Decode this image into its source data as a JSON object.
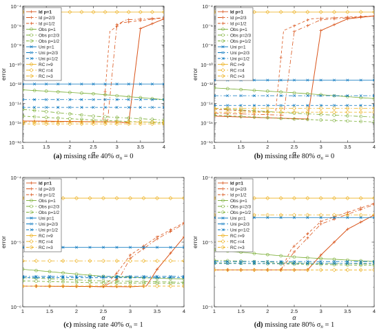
{
  "chart_data": [
    {
      "type": "line",
      "caption_tag": "(a)",
      "caption_text": "missing rate 40% σ",
      "caption_sub": "n",
      "caption_tail": " = 0",
      "xlabel": "α",
      "ylabel": "error",
      "xlim": [
        1,
        4
      ],
      "ylim": [
        1e-18,
        0.0001
      ],
      "yscale": "log",
      "x_ticks": [
        1,
        1.5,
        2,
        2.5,
        3,
        3.5,
        4
      ],
      "y_ticks": [
        "10⁻¹⁸",
        "10⁻¹⁶",
        "10⁻¹⁴",
        "10⁻¹²",
        "10⁻¹⁰",
        "10⁻⁸",
        "10⁻⁶",
        "10⁻⁴"
      ],
      "legend_position": "top-left",
      "series": [
        {
          "name": "Id p=1",
          "x": [
            1,
            3.0,
            3.25,
            3.5,
            4
          ],
          "y": [
            -15.8,
            -15.9,
            -16.0,
            -6.3,
            -5.3
          ]
        },
        {
          "name": "Id p=2/3",
          "x": [
            1,
            2.8,
            3.0,
            3.2,
            4
          ],
          "y": [
            -15.8,
            -15.9,
            -5.9,
            -5.4,
            -5.2
          ]
        },
        {
          "name": "Id p=1/2",
          "x": [
            1,
            2.7,
            2.85,
            3.1,
            4
          ],
          "y": [
            -15.8,
            -15.9,
            -6.6,
            -5.7,
            -5.2
          ]
        },
        {
          "name": "Obs p=1",
          "x": [
            1,
            2.5,
            4
          ],
          "y": [
            -12.6,
            -13.0,
            -13.6
          ]
        },
        {
          "name": "Obs p=2/3",
          "x": [
            1,
            2.5,
            4
          ],
          "y": [
            -14.6,
            -15.3,
            -15.7
          ]
        },
        {
          "name": "Obs p=1/2",
          "x": [
            1,
            2.5,
            4
          ],
          "y": [
            -15.3,
            -15.7,
            -16.0
          ]
        },
        {
          "name": "Uni p=1",
          "x": [
            1,
            4
          ],
          "y": [
            -12.0,
            -12.0
          ]
        },
        {
          "name": "Uni p=2/3",
          "x": [
            1,
            4
          ],
          "y": [
            -13.6,
            -13.6
          ]
        },
        {
          "name": "Uni p=1/2",
          "x": [
            1,
            4
          ],
          "y": [
            -14.4,
            -14.4
          ]
        },
        {
          "name": "RC r=9",
          "x": [
            1,
            4
          ],
          "y": [
            -4.6,
            -4.6
          ]
        },
        {
          "name": "RC r=4",
          "x": [
            1,
            4
          ],
          "y": [
            -15.9,
            -15.9
          ]
        },
        {
          "name": "RC r=3",
          "x": [
            1,
            4
          ],
          "y": [
            -16.1,
            -16.1
          ]
        }
      ]
    },
    {
      "type": "line",
      "caption_tag": "(b)",
      "caption_text": "missing rate 80% σ",
      "caption_sub": "n",
      "caption_tail": " = 0",
      "xlabel": "α",
      "ylabel": "error",
      "xlim": [
        1,
        4
      ],
      "ylim": [
        1e-18,
        0.0001
      ],
      "yscale": "log",
      "x_ticks": [
        1,
        1.5,
        2,
        2.5,
        3,
        3.5,
        4
      ],
      "y_ticks": [
        "10⁻¹⁸",
        "10⁻¹⁶",
        "10⁻¹⁴",
        "10⁻¹²",
        "10⁻¹⁰",
        "10⁻⁸",
        "10⁻⁶",
        "10⁻⁴"
      ],
      "legend_position": "top-left",
      "series": [
        {
          "name": "Id p=1",
          "x": [
            1,
            2.75,
            3.0,
            3.5,
            4
          ],
          "y": [
            -15.3,
            -15.6,
            -6.5,
            -5.3,
            -5.0
          ]
        },
        {
          "name": "Id p=2/3",
          "x": [
            1,
            2.3,
            2.5,
            3.0,
            4
          ],
          "y": [
            -15.0,
            -15.2,
            -6.6,
            -5.4,
            -5.0
          ]
        },
        {
          "name": "Id p=1/2",
          "x": [
            1,
            2.15,
            2.3,
            2.8,
            4
          ],
          "y": [
            -14.6,
            -14.9,
            -6.5,
            -5.3,
            -5.0
          ]
        },
        {
          "name": "Obs p=1",
          "x": [
            1,
            2.5,
            4
          ],
          "y": [
            -12.4,
            -12.9,
            -13.5
          ]
        },
        {
          "name": "Obs p=2/3",
          "x": [
            1,
            2.5,
            4
          ],
          "y": [
            -14.5,
            -15.0,
            -15.4
          ]
        },
        {
          "name": "Obs p=1/2",
          "x": [
            1,
            2.5,
            4
          ],
          "y": [
            -15.2,
            -15.6,
            -15.9
          ]
        },
        {
          "name": "Uni p=1",
          "x": [
            1,
            4
          ],
          "y": [
            -11.6,
            -11.6
          ]
        },
        {
          "name": "Uni p=2/3",
          "x": [
            1,
            4
          ],
          "y": [
            -13.2,
            -13.2
          ]
        },
        {
          "name": "Uni p=1/2",
          "x": [
            1,
            4
          ],
          "y": [
            -14.2,
            -14.2
          ]
        },
        {
          "name": "RC r=9",
          "x": [
            1,
            4
          ],
          "y": [
            -4.6,
            -4.6
          ]
        },
        {
          "name": "RC r=4",
          "x": [
            1,
            4
          ],
          "y": [
            -14.5,
            -14.5
          ]
        },
        {
          "name": "RC r=3",
          "x": [
            1,
            4
          ],
          "y": [
            -14.9,
            -14.9
          ]
        }
      ]
    },
    {
      "type": "line",
      "caption_tag": "(c)",
      "caption_text": "missing rate 40% σ",
      "caption_sub": "n",
      "caption_tail": " = 1",
      "xlabel": "α",
      "ylabel": "error",
      "xlim": [
        1,
        4
      ],
      "ylim": [
        1e-06,
        0.0001
      ],
      "yscale": "log",
      "x_ticks": [
        1,
        1.5,
        2,
        2.5,
        3,
        3.5,
        4
      ],
      "y_ticks": [
        "10⁻⁶",
        "10⁻⁵",
        "10⁻⁴"
      ],
      "legend_position": "top-left",
      "series": [
        {
          "name": "Id p=1",
          "x": [
            1,
            3.0,
            3.3,
            3.5,
            3.75,
            4
          ],
          "y": [
            -5.68,
            -5.69,
            -5.68,
            -5.42,
            -5.17,
            -4.92
          ]
        },
        {
          "name": "Id p=2/3",
          "x": [
            1,
            2.5,
            2.8,
            3.0,
            3.5,
            4
          ],
          "y": [
            -5.68,
            -5.69,
            -5.55,
            -5.25,
            -4.95,
            -4.72
          ]
        },
        {
          "name": "Id p=1/2",
          "x": [
            1,
            2.5,
            2.75,
            3.0,
            3.5,
            4
          ],
          "y": [
            -5.68,
            -5.69,
            -5.48,
            -5.2,
            -4.92,
            -4.7
          ]
        },
        {
          "name": "Obs p=1",
          "x": [
            1,
            2.5,
            4
          ],
          "y": [
            -5.42,
            -5.53,
            -5.57
          ]
        },
        {
          "name": "Obs p=2/3",
          "x": [
            1,
            2.5,
            4
          ],
          "y": [
            -5.55,
            -5.6,
            -5.62
          ]
        },
        {
          "name": "Obs p=1/2",
          "x": [
            1,
            2.5,
            4
          ],
          "y": [
            -5.6,
            -5.63,
            -5.64
          ]
        },
        {
          "name": "Uni p=1",
          "x": [
            1,
            4
          ],
          "y": [
            -5.08,
            -5.08
          ]
        },
        {
          "name": "Uni p=2/3",
          "x": [
            1,
            4
          ],
          "y": [
            -5.53,
            -5.53
          ]
        },
        {
          "name": "Uni p=1/2",
          "x": [
            1,
            4
          ],
          "y": [
            -5.55,
            -5.55
          ]
        },
        {
          "name": "RC r=9",
          "x": [
            1,
            4
          ],
          "y": [
            -4.32,
            -4.32
          ]
        },
        {
          "name": "RC r=4",
          "x": [
            1,
            4
          ],
          "y": [
            -5.29,
            -5.29
          ]
        },
        {
          "name": "RC r=3",
          "x": [
            1,
            4
          ],
          "y": [
            -5.68,
            -5.68
          ]
        }
      ]
    },
    {
      "type": "line",
      "caption_tag": "(d)",
      "caption_text": "missing rate 80% σ",
      "caption_sub": "n",
      "caption_tail": " = 1",
      "xlabel": "α",
      "ylabel": "error",
      "xlim": [
        1,
        4
      ],
      "ylim": [
        1e-06,
        0.0001
      ],
      "yscale": "log",
      "x_ticks": [
        1,
        1.5,
        2,
        2.5,
        3,
        3.5,
        4
      ],
      "y_ticks": [
        "10⁻⁶",
        "10⁻⁵",
        "10⁻⁴"
      ],
      "legend_position": "top-left",
      "series": [
        {
          "name": "Id p=1",
          "x": [
            1,
            2.75,
            3.0,
            3.5,
            4
          ],
          "y": [
            -5.43,
            -5.43,
            -5.2,
            -4.8,
            -4.58
          ]
        },
        {
          "name": "Id p=2/3",
          "x": [
            1,
            2.25,
            2.5,
            3.0,
            4
          ],
          "y": [
            -5.43,
            -5.43,
            -5.15,
            -4.72,
            -4.42
          ]
        },
        {
          "name": "Id p=1/2",
          "x": [
            1,
            2.25,
            2.45,
            3.0,
            4
          ],
          "y": [
            -5.43,
            -5.43,
            -5.1,
            -4.68,
            -4.4
          ]
        },
        {
          "name": "Obs p=1",
          "x": [
            1,
            2.5,
            4
          ],
          "y": [
            -5.12,
            -5.23,
            -5.3
          ]
        },
        {
          "name": "Obs p=2/3",
          "x": [
            1,
            2.5,
            4
          ],
          "y": [
            -5.28,
            -5.32,
            -5.34
          ]
        },
        {
          "name": "Obs p=1/2",
          "x": [
            1,
            2.5,
            4
          ],
          "y": [
            -5.32,
            -5.34,
            -5.36
          ]
        },
        {
          "name": "Uni p=1",
          "x": [
            1,
            4
          ],
          "y": [
            -4.62,
            -4.62
          ]
        },
        {
          "name": "Uni p=2/3",
          "x": [
            1,
            4
          ],
          "y": [
            -5.3,
            -5.3
          ]
        },
        {
          "name": "Uni p=1/2",
          "x": [
            1,
            4
          ],
          "y": [
            -5.33,
            -5.33
          ]
        },
        {
          "name": "RC r=9",
          "x": [
            1,
            4
          ],
          "y": [
            -4.32,
            -4.32
          ]
        },
        {
          "name": "RC r=4",
          "x": [
            1,
            4
          ],
          "y": [
            -4.58,
            -4.58
          ]
        },
        {
          "name": "RC r=3",
          "x": [
            1,
            4
          ],
          "y": [
            -5.43,
            -5.43
          ]
        }
      ]
    }
  ],
  "series_styles": [
    {
      "color": "#d95319",
      "dash": "",
      "marker": "plus",
      "bold": true
    },
    {
      "color": "#d95319",
      "dash": "6 3 1.5 3",
      "marker": "plus",
      "bold": false
    },
    {
      "color": "#d95319",
      "dash": "4 3",
      "marker": "plus",
      "bold": false
    },
    {
      "color": "#77ac30",
      "dash": "",
      "marker": "circle",
      "bold": false
    },
    {
      "color": "#77ac30",
      "dash": "6 3 1.5 3",
      "marker": "circle",
      "bold": false
    },
    {
      "color": "#77ac30",
      "dash": "4 3",
      "marker": "circle",
      "bold": false
    },
    {
      "color": "#0072bd",
      "dash": "",
      "marker": "x",
      "bold": false
    },
    {
      "color": "#0072bd",
      "dash": "6 3 1.5 3",
      "marker": "x",
      "bold": false
    },
    {
      "color": "#0072bd",
      "dash": "4 3",
      "marker": "x",
      "bold": false
    },
    {
      "color": "#edb120",
      "dash": "",
      "marker": "diamond",
      "bold": false
    },
    {
      "color": "#edb120",
      "dash": "6 3 1.5 3",
      "marker": "diamond",
      "bold": false
    },
    {
      "color": "#edb120",
      "dash": "4 3",
      "marker": "diamond",
      "bold": false
    }
  ]
}
